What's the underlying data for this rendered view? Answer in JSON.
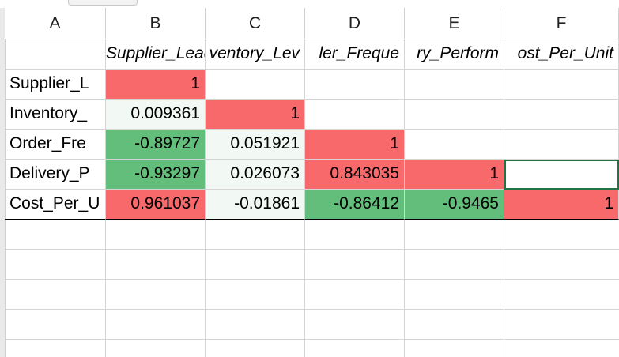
{
  "columns": [
    "A",
    "B",
    "C",
    "D",
    "E",
    "F"
  ],
  "header_row": [
    "",
    "Supplier_Lead_",
    "ventory_Lev",
    "ler_Freque",
    "ry_Perform",
    "ost_Per_Unit"
  ],
  "rows": [
    {
      "label": "Supplier_L",
      "values": [
        "1",
        "",
        "",
        "",
        ""
      ]
    },
    {
      "label": "Inventory_",
      "values": [
        "0.009361",
        "1",
        "",
        "",
        ""
      ]
    },
    {
      "label": "Order_Fre",
      "values": [
        "-0.89727",
        "0.051921",
        "1",
        "",
        ""
      ]
    },
    {
      "label": "Delivery_P",
      "values": [
        "-0.93297",
        "0.026073",
        "0.843035",
        "1",
        ""
      ]
    },
    {
      "label": "Cost_Per_U",
      "values": [
        "0.961037",
        "-0.01861",
        "-0.86412",
        "-0.9465",
        "1"
      ]
    }
  ],
  "colors": {
    "red": "#f8696b",
    "green": "#63be7b",
    "light": "#f2f8f3",
    "white": "#ffffff",
    "selection": "#217346"
  },
  "cell_fills": [
    [
      "red",
      "",
      "",
      "",
      ""
    ],
    [
      "light",
      "red",
      "",
      "",
      ""
    ],
    [
      "green",
      "light",
      "red",
      "",
      ""
    ],
    [
      "green",
      "light",
      "red",
      "red",
      ""
    ],
    [
      "red",
      "light",
      "green",
      "green",
      "red"
    ]
  ]
}
